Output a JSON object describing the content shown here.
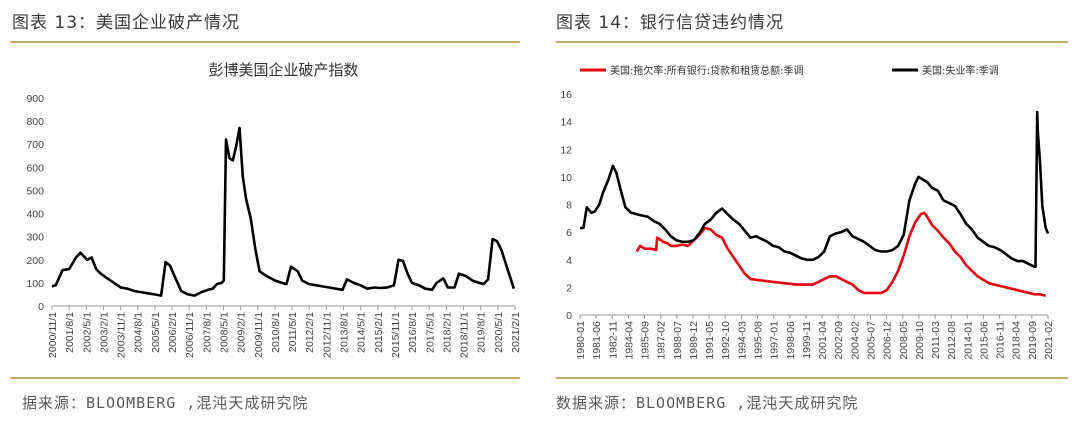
{
  "left": {
    "figure_title": "图表 13：美国企业破产情况",
    "source": "据来源：BLOOMBERG ,混沌天成研究院"
  },
  "right": {
    "figure_title": "图表 14：银行信贷违约情况",
    "source": "数据来源：BLOOMBERG ,混沌天成研究院"
  },
  "colors": {
    "rule": "#c7a975",
    "line_black": "#000000",
    "line_red": "#e60012"
  },
  "chart_data": [
    {
      "type": "line",
      "title": "彭博美国企业破产指数",
      "ylim": [
        0,
        900
      ],
      "yticks": [
        0,
        100,
        200,
        300,
        400,
        500,
        600,
        700,
        800,
        900
      ],
      "xtick_labels": [
        "2000/11/1",
        "2001/8/1",
        "2002/5/1",
        "2003/2/1",
        "2003/11/1",
        "2004/8/1",
        "2005/5/1",
        "2006/2/1",
        "2006/11/1",
        "2007/8/1",
        "2008/5/1",
        "2009/2/1",
        "2009/11/1",
        "2010/8/1",
        "2011/5/1",
        "2012/2/1",
        "2012/11/1",
        "2013/8/1",
        "2014/5/1",
        "2015/2/1",
        "2015/11/1",
        "2016/8/1",
        "2017/5/1",
        "2018/2/1",
        "2018/11/1",
        "2019/8/1",
        "2020/5/1",
        "2021/2/1"
      ],
      "x_range": [
        2000.83,
        2021.5
      ],
      "series": [
        {
          "color": "#000000",
          "x": [
            2000.83,
            2001.0,
            2001.3,
            2001.6,
            2001.9,
            2002.1,
            2002.4,
            2002.6,
            2002.8,
            2003.0,
            2003.3,
            2003.6,
            2003.9,
            2004.2,
            2004.5,
            2004.8,
            2005.1,
            2005.4,
            2005.7,
            2005.9,
            2006.1,
            2006.3,
            2006.6,
            2006.9,
            2007.2,
            2007.5,
            2007.8,
            2008.0,
            2008.2,
            2008.4,
            2008.5,
            2008.6,
            2008.75,
            2008.9,
            2009.05,
            2009.2,
            2009.35,
            2009.5,
            2009.7,
            2009.9,
            2010.1,
            2010.4,
            2010.8,
            2011.1,
            2011.3,
            2011.5,
            2011.8,
            2012.0,
            2012.3,
            2012.6,
            2012.9,
            2013.2,
            2013.5,
            2013.8,
            2014.0,
            2014.3,
            2014.6,
            2014.9,
            2015.2,
            2015.5,
            2015.8,
            2016.1,
            2016.3,
            2016.5,
            2016.7,
            2016.9,
            2017.2,
            2017.5,
            2017.8,
            2018.0,
            2018.3,
            2018.5,
            2018.8,
            2019.0,
            2019.3,
            2019.6,
            2019.9,
            2020.1,
            2020.3,
            2020.5,
            2020.7,
            2020.9,
            2021.1,
            2021.3,
            2021.45
          ],
          "y": [
            85,
            90,
            155,
            160,
            210,
            230,
            200,
            210,
            160,
            140,
            120,
            100,
            80,
            75,
            65,
            60,
            55,
            50,
            45,
            190,
            175,
            130,
            65,
            50,
            45,
            60,
            70,
            75,
            95,
            100,
            110,
            720,
            640,
            630,
            690,
            770,
            560,
            460,
            380,
            250,
            150,
            130,
            110,
            100,
            95,
            170,
            150,
            110,
            95,
            90,
            85,
            80,
            75,
            70,
            115,
            100,
            90,
            75,
            80,
            78,
            80,
            90,
            200,
            195,
            140,
            100,
            90,
            75,
            70,
            100,
            120,
            80,
            80,
            140,
            130,
            110,
            100,
            95,
            115,
            290,
            280,
            240,
            180,
            120,
            75
          ]
        }
      ]
    },
    {
      "type": "line",
      "title": "",
      "ylim": [
        0,
        16
      ],
      "yticks": [
        0,
        2,
        4,
        6,
        8,
        10,
        12,
        14,
        16
      ],
      "xtick_labels": [
        "1980-01",
        "1981-06",
        "1982-11",
        "1984-04",
        "1985-09",
        "1987-02",
        "1988-07",
        "1989-12",
        "1991-05",
        "1992-10",
        "1994-03",
        "1995-08",
        "1997-01",
        "1998-06",
        "1999-11",
        "2001-04",
        "2002-09",
        "2004-02",
        "2005-07",
        "2006-12",
        "2008-05",
        "2009-10",
        "2011-03",
        "2012-08",
        "2014-01",
        "2015-06",
        "2016-11",
        "2018-04",
        "2019-09",
        "2021-02"
      ],
      "x_range": [
        1980.0,
        2021.2
      ],
      "series": [
        {
          "name": "美国:拖欠率:所有银行:贷款和租赁总额:季调",
          "color": "#e60012",
          "x": [
            1985.0,
            1985.3,
            1985.7,
            1986.3,
            1986.7,
            1986.8,
            1987.0,
            1987.3,
            1987.7,
            1988.0,
            1988.5,
            1989.0,
            1989.5,
            1990.0,
            1990.5,
            1991.0,
            1991.5,
            1992.0,
            1992.5,
            1993.0,
            1993.5,
            1994.0,
            1994.5,
            1995.0,
            1996.0,
            1997.0,
            1998.0,
            1999.0,
            2000.0,
            2000.5,
            2001.0,
            2001.5,
            2002.0,
            2002.5,
            2003.0,
            2003.5,
            2004.0,
            2004.5,
            2005.0,
            2005.5,
            2006.0,
            2006.5,
            2007.0,
            2007.5,
            2008.0,
            2008.5,
            2009.0,
            2009.5,
            2010.0,
            2010.3,
            2010.5,
            2011.0,
            2011.5,
            2012.0,
            2012.5,
            2013.0,
            2013.5,
            2014.0,
            2014.5,
            2015.0,
            2016.0,
            2017.0,
            2018.0,
            2019.0,
            2019.5,
            2020.0,
            2020.5,
            2021.0
          ],
          "y": [
            4.6,
            5.0,
            4.8,
            4.8,
            4.7,
            5.6,
            5.5,
            5.3,
            5.2,
            5.0,
            5.0,
            5.1,
            5.0,
            5.4,
            5.8,
            6.3,
            6.2,
            5.8,
            5.6,
            4.8,
            4.2,
            3.6,
            3.0,
            2.6,
            2.5,
            2.4,
            2.3,
            2.2,
            2.2,
            2.2,
            2.4,
            2.6,
            2.8,
            2.8,
            2.6,
            2.4,
            2.2,
            1.8,
            1.6,
            1.6,
            1.6,
            1.6,
            1.8,
            2.4,
            3.2,
            4.3,
            5.7,
            6.7,
            7.3,
            7.4,
            7.2,
            6.5,
            6.1,
            5.6,
            5.2,
            4.6,
            4.2,
            3.6,
            3.2,
            2.8,
            2.3,
            2.1,
            1.9,
            1.7,
            1.6,
            1.5,
            1.5,
            1.4
          ]
        },
        {
          "name": "美国:失业率:季调",
          "color": "#000000",
          "x": [
            1980.0,
            1980.3,
            1980.6,
            1981.0,
            1981.3,
            1981.7,
            1982.0,
            1982.5,
            1982.9,
            1983.2,
            1983.6,
            1984.0,
            1984.5,
            1985.0,
            1985.5,
            1986.0,
            1986.5,
            1987.0,
            1987.5,
            1988.0,
            1988.5,
            1989.0,
            1989.5,
            1990.0,
            1990.5,
            1991.0,
            1991.5,
            1992.0,
            1992.5,
            1993.0,
            1993.5,
            1994.0,
            1994.5,
            1995.0,
            1995.5,
            1996.0,
            1996.5,
            1997.0,
            1997.5,
            1998.0,
            1998.5,
            1999.0,
            1999.5,
            2000.0,
            2000.5,
            2001.0,
            2001.5,
            2002.0,
            2002.5,
            2003.0,
            2003.5,
            2004.0,
            2004.5,
            2005.0,
            2005.5,
            2006.0,
            2006.5,
            2007.0,
            2007.5,
            2008.0,
            2008.5,
            2009.0,
            2009.5,
            2009.8,
            2010.2,
            2010.6,
            2011.0,
            2011.5,
            2012.0,
            2012.5,
            2013.0,
            2013.5,
            2014.0,
            2014.5,
            2015.0,
            2015.5,
            2016.0,
            2016.5,
            2017.0,
            2017.5,
            2018.0,
            2018.5,
            2019.0,
            2019.5,
            2020.0,
            2020.1,
            2020.25,
            2020.3,
            2020.5,
            2020.7,
            2021.0,
            2021.2
          ],
          "y": [
            6.3,
            6.3,
            7.8,
            7.4,
            7.5,
            8.0,
            8.8,
            9.8,
            10.8,
            10.3,
            9.0,
            7.8,
            7.4,
            7.3,
            7.2,
            7.1,
            6.8,
            6.6,
            6.2,
            5.7,
            5.4,
            5.3,
            5.3,
            5.4,
            5.9,
            6.6,
            6.9,
            7.4,
            7.7,
            7.3,
            6.9,
            6.6,
            6.1,
            5.6,
            5.7,
            5.5,
            5.3,
            5.0,
            4.9,
            4.6,
            4.5,
            4.3,
            4.1,
            4.0,
            4.0,
            4.2,
            4.6,
            5.7,
            5.9,
            6.0,
            6.2,
            5.7,
            5.5,
            5.3,
            5.0,
            4.7,
            4.6,
            4.6,
            4.7,
            5.0,
            5.8,
            8.3,
            9.5,
            10.0,
            9.8,
            9.6,
            9.2,
            9.0,
            8.3,
            8.1,
            7.9,
            7.3,
            6.6,
            6.2,
            5.6,
            5.3,
            5.0,
            4.9,
            4.7,
            4.4,
            4.1,
            3.9,
            3.9,
            3.7,
            3.5,
            3.5,
            14.7,
            13.3,
            11.1,
            7.9,
            6.3,
            5.9
          ]
        }
      ]
    }
  ]
}
